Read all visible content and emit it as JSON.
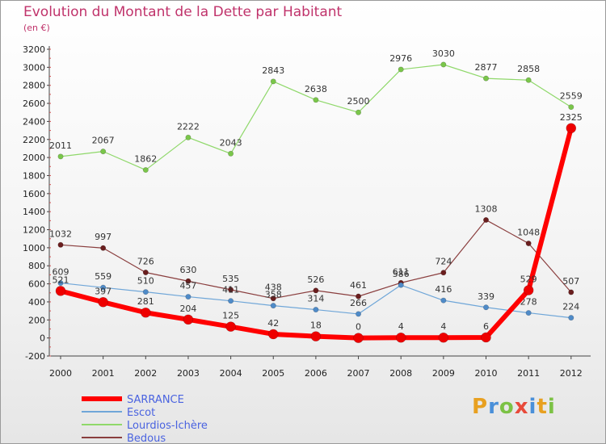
{
  "chart_data": {
    "type": "line",
    "title": "Evolution du Montant de la Dette par Habitant",
    "subtitle": "(en €)",
    "xlabel": "",
    "ylabel": "",
    "x": [
      "2000",
      "2001",
      "2002",
      "2003",
      "2004",
      "2005",
      "2006",
      "2007",
      "2008",
      "2009",
      "2010",
      "2011",
      "2012"
    ],
    "ylim": [
      -200,
      3200
    ],
    "yticks": [
      -200,
      0,
      200,
      400,
      600,
      800,
      1000,
      1200,
      1400,
      1600,
      1800,
      2000,
      2200,
      2400,
      2600,
      2800,
      3000,
      3200
    ],
    "grid": false,
    "legend_position": "bottom-left",
    "series": [
      {
        "name": "Lourdios-Ichère",
        "color": "#7fcc50",
        "line_color": "#8fd86a",
        "marker_color": "#7ac64a",
        "width": 1.2,
        "marker_r": 3.2,
        "values": [
          2011,
          2067,
          1862,
          2222,
          2043,
          2843,
          2638,
          2500,
          2976,
          3030,
          2877,
          2858,
          2559
        ]
      },
      {
        "name": "Bedous",
        "color": "#7a2e2e",
        "line_color": "#8a3e3e",
        "marker_color": "#6a1e1e",
        "width": 1.2,
        "marker_r": 3.2,
        "values": [
          1032,
          997,
          726,
          630,
          535,
          438,
          526,
          461,
          611,
          724,
          1308,
          1048,
          507
        ]
      },
      {
        "name": "Escot",
        "color": "#5f9bd0",
        "line_color": "#6fa6d8",
        "marker_color": "#4f8bc8",
        "width": 1.2,
        "marker_r": 3.2,
        "values": [
          609,
          559,
          510,
          457,
          411,
          358,
          314,
          266,
          586,
          416,
          339,
          278,
          224
        ]
      },
      {
        "name": "SARRANCE",
        "color": "#ff0000",
        "line_color": "#ff0000",
        "marker_color": "#ee0000",
        "width": 6,
        "marker_r": 6,
        "values": [
          521,
          397,
          281,
          204,
          125,
          42,
          18,
          0,
          4,
          4,
          6,
          529,
          2325
        ]
      }
    ],
    "legend_order": [
      "SARRANCE",
      "Escot",
      "Lourdios-Ichère",
      "Bedous"
    ]
  },
  "legend_text_color": "#4a63e0",
  "logo": {
    "text": "Proxiti",
    "colors": [
      "#e8a020",
      "#4a90d9",
      "#7cc245",
      "#e84a3a",
      "#4a90d9",
      "#e8a020",
      "#7cc245"
    ]
  }
}
